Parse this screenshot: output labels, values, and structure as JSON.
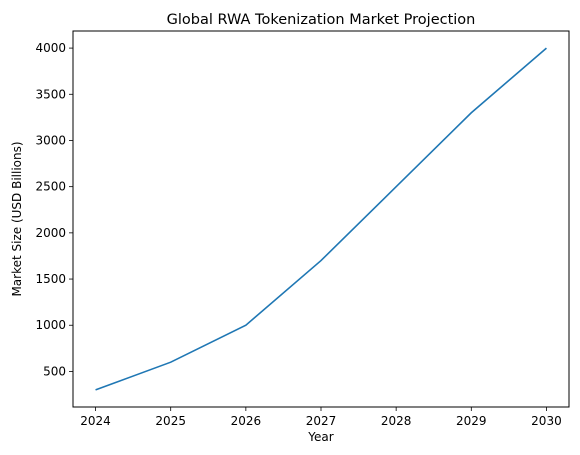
{
  "chart_data": {
    "type": "line",
    "title": "Global RWA Tokenization Market Projection",
    "xlabel": "Year",
    "ylabel": "Market Size (USD Billions)",
    "x": [
      2024,
      2025,
      2026,
      2027,
      2028,
      2029,
      2030
    ],
    "series": [
      {
        "values": [
          300,
          600,
          1000,
          1700,
          2500,
          3300,
          4000
        ],
        "color": "#1f77b4"
      }
    ],
    "xticks": [
      "2024",
      "2025",
      "2026",
      "2027",
      "2028",
      "2029",
      "2030"
    ],
    "yticks": [
      500,
      1000,
      1500,
      2000,
      2500,
      3000,
      3500,
      4000
    ],
    "xlim": [
      2023.7,
      2030.3
    ],
    "ylim": [
      115,
      4185
    ],
    "grid": false,
    "legend": false
  }
}
